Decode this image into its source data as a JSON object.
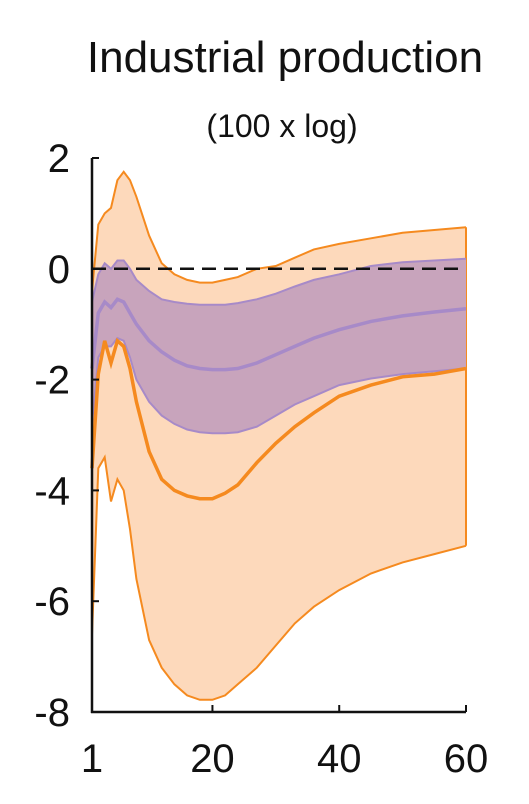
{
  "chart_data": {
    "type": "area",
    "title": "Industrial production",
    "subtitle": "(100 x log)",
    "xlabel": "",
    "ylabel": "",
    "xlim": [
      1,
      60
    ],
    "ylim": [
      -8,
      2
    ],
    "x_ticks": [
      1,
      20,
      40,
      60
    ],
    "y_ticks": [
      2,
      0,
      -2,
      -4,
      -6,
      -8
    ],
    "zero_line": true,
    "grid": false,
    "legend": "none",
    "colors": {
      "orange_line": "#f58a1f",
      "orange_band": "#fdd9bb",
      "purple_line": "#a78ac8",
      "purple_band": "#c8a4bc"
    },
    "series": [
      {
        "color": "orange",
        "x": [
          1,
          2,
          3,
          4,
          5,
          6,
          7,
          8,
          10,
          12,
          14,
          16,
          18,
          20,
          22,
          24,
          27,
          30,
          33,
          36,
          40,
          45,
          50,
          55,
          60
        ],
        "value": [
          -3.6,
          -1.9,
          -1.3,
          -1.7,
          -1.3,
          -1.4,
          -1.8,
          -2.4,
          -3.3,
          -3.8,
          -4.0,
          -4.1,
          -4.15,
          -4.15,
          -4.05,
          -3.9,
          -3.5,
          -3.15,
          -2.85,
          -2.6,
          -2.3,
          -2.1,
          -1.95,
          -1.9,
          -1.8
        ],
        "lower": [
          -6.6,
          -3.6,
          -3.4,
          -4.2,
          -3.8,
          -4.0,
          -4.7,
          -5.6,
          -6.7,
          -7.2,
          -7.5,
          -7.7,
          -7.78,
          -7.78,
          -7.7,
          -7.5,
          -7.2,
          -6.8,
          -6.4,
          -6.1,
          -5.8,
          -5.5,
          -5.3,
          -5.15,
          -5.0
        ],
        "upper": [
          -0.4,
          0.8,
          1.0,
          1.1,
          1.6,
          1.75,
          1.6,
          1.3,
          0.6,
          0.1,
          -0.1,
          -0.2,
          -0.25,
          -0.25,
          -0.2,
          -0.15,
          0.0,
          0.05,
          0.2,
          0.35,
          0.45,
          0.55,
          0.65,
          0.7,
          0.75
        ]
      },
      {
        "color": "purple",
        "x": [
          1,
          2,
          3,
          4,
          5,
          6,
          7,
          8,
          10,
          12,
          14,
          16,
          18,
          20,
          22,
          24,
          27,
          30,
          33,
          36,
          40,
          45,
          50,
          55,
          60
        ],
        "value": [
          -1.8,
          -0.8,
          -0.6,
          -0.7,
          -0.55,
          -0.6,
          -0.8,
          -1.0,
          -1.3,
          -1.5,
          -1.65,
          -1.75,
          -1.8,
          -1.82,
          -1.82,
          -1.8,
          -1.7,
          -1.55,
          -1.4,
          -1.25,
          -1.1,
          -0.95,
          -0.85,
          -0.78,
          -0.72
        ],
        "lower": [
          -2.8,
          -1.6,
          -1.4,
          -1.4,
          -1.25,
          -1.3,
          -1.6,
          -2.0,
          -2.4,
          -2.65,
          -2.8,
          -2.9,
          -2.95,
          -2.97,
          -2.97,
          -2.95,
          -2.85,
          -2.65,
          -2.45,
          -2.3,
          -2.1,
          -1.98,
          -1.9,
          -1.85,
          -1.8
        ],
        "upper": [
          -0.6,
          -0.1,
          0.1,
          0.0,
          0.15,
          0.15,
          0.0,
          -0.2,
          -0.4,
          -0.55,
          -0.6,
          -0.63,
          -0.65,
          -0.65,
          -0.65,
          -0.62,
          -0.55,
          -0.45,
          -0.32,
          -0.2,
          -0.1,
          0.05,
          0.12,
          0.15,
          0.18
        ]
      }
    ]
  }
}
